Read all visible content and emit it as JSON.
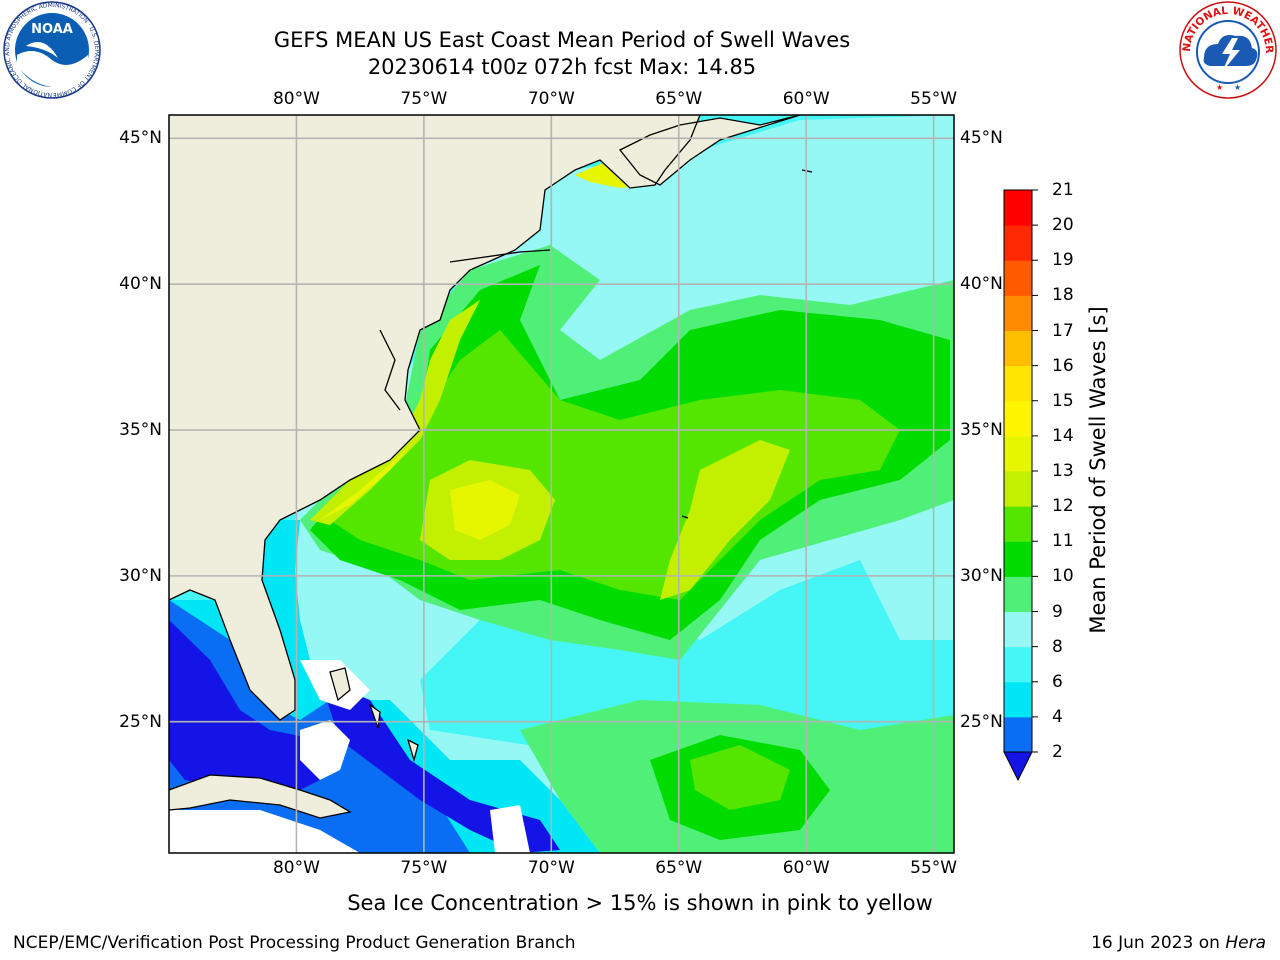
{
  "header": {
    "title_line1": "GEFS MEAN US East Coast Mean Period of Swell Waves",
    "title_line2": "20230614 t00z 072h fcst   Max: 14.85",
    "noaa_logo_icon": "noaa-seal-icon",
    "nws_logo_icon": "national-weather-service-seal-icon",
    "noaa_logo_text": "NOAA",
    "noaa_ring_text": "NATIONAL OCEANIC AND ATMOSPHERIC ADMINISTRATION · U.S. DEPARTMENT OF COMMERCE",
    "nws_ring_text": "NATIONAL WEATHER SERVICE"
  },
  "map": {
    "projection": "cylindrical",
    "extent": {
      "lon_min": -85,
      "lon_max": -54.2,
      "lat_min": 20.5,
      "lat_max": 45.8
    },
    "longitude_ticks": [
      {
        "value": -80,
        "label": "80°W"
      },
      {
        "value": -75,
        "label": "75°W"
      },
      {
        "value": -70,
        "label": "70°W"
      },
      {
        "value": -65,
        "label": "65°W"
      },
      {
        "value": -60,
        "label": "60°W"
      },
      {
        "value": -55,
        "label": "55°W"
      }
    ],
    "latitude_ticks": [
      {
        "value": 45,
        "label": "45°N"
      },
      {
        "value": 40,
        "label": "40°N"
      },
      {
        "value": 35,
        "label": "35°N"
      },
      {
        "value": 30,
        "label": "30°N"
      },
      {
        "value": 25,
        "label": "25°N"
      }
    ],
    "grid": true,
    "colors": {
      "land": "#efeedd",
      "gridline": "#b4b4b4",
      "coastline": "#000000",
      "no_data": "#ffffff"
    }
  },
  "colorbar": {
    "title": "Mean Period of Swell Waves [s]",
    "levels": [
      2,
      4,
      6,
      8,
      9,
      10,
      11,
      12,
      13,
      14,
      15,
      16,
      17,
      18,
      19,
      20,
      21
    ],
    "colors": [
      "#0a6ef5",
      "#00e6f5",
      "#46f5f5",
      "#96f8f5",
      "#50f078",
      "#00dc00",
      "#55e600",
      "#c3f000",
      "#e6f500",
      "#fff500",
      "#ffe600",
      "#ffbe00",
      "#ff8c00",
      "#ff5a00",
      "#ff2800",
      "#ff0000"
    ],
    "under_color": "#1414e6",
    "extend": "min"
  },
  "footer": {
    "note": "Sea Ice Concentration > 15% is shown in pink to yellow",
    "left": "NCEP/EMC/Verification Post Processing Product Generation Branch",
    "right_date": "16 Jun 2023 on ",
    "right_host": "Hera"
  }
}
